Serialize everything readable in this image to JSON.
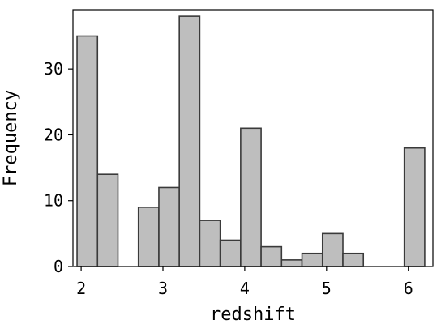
{
  "chart_data": {
    "type": "bar",
    "title": "",
    "xlabel": "redshift",
    "ylabel": "Frequency",
    "xlim": [
      1.9,
      6.3
    ],
    "ylim": [
      0,
      39
    ],
    "xticks": [
      2,
      3,
      4,
      5,
      6
    ],
    "yticks": [
      0,
      10,
      20,
      30
    ],
    "xtick_labels": [
      "2",
      "3",
      "4",
      "5",
      "6"
    ],
    "ytick_labels": [
      "0",
      "10",
      "20",
      "30"
    ],
    "bins": [
      {
        "x0": 1.95,
        "x1": 2.2,
        "value": 35
      },
      {
        "x0": 2.2,
        "x1": 2.45,
        "value": 14
      },
      {
        "x0": 2.7,
        "x1": 2.95,
        "value": 9
      },
      {
        "x0": 2.95,
        "x1": 3.2,
        "value": 12
      },
      {
        "x0": 3.2,
        "x1": 3.45,
        "value": 38
      },
      {
        "x0": 3.45,
        "x1": 3.7,
        "value": 7
      },
      {
        "x0": 3.7,
        "x1": 3.95,
        "value": 4
      },
      {
        "x0": 3.95,
        "x1": 4.2,
        "value": 21
      },
      {
        "x0": 4.2,
        "x1": 4.45,
        "value": 3
      },
      {
        "x0": 4.45,
        "x1": 4.7,
        "value": 1
      },
      {
        "x0": 4.7,
        "x1": 4.95,
        "value": 2
      },
      {
        "x0": 4.95,
        "x1": 5.2,
        "value": 5
      },
      {
        "x0": 5.2,
        "x1": 5.45,
        "value": 2
      },
      {
        "x0": 5.95,
        "x1": 6.2,
        "value": 18
      }
    ],
    "grid": false,
    "colors": {
      "bar_fill": "#bebebe",
      "bar_edge": "#3a3a3a",
      "frame": "#000000"
    }
  }
}
